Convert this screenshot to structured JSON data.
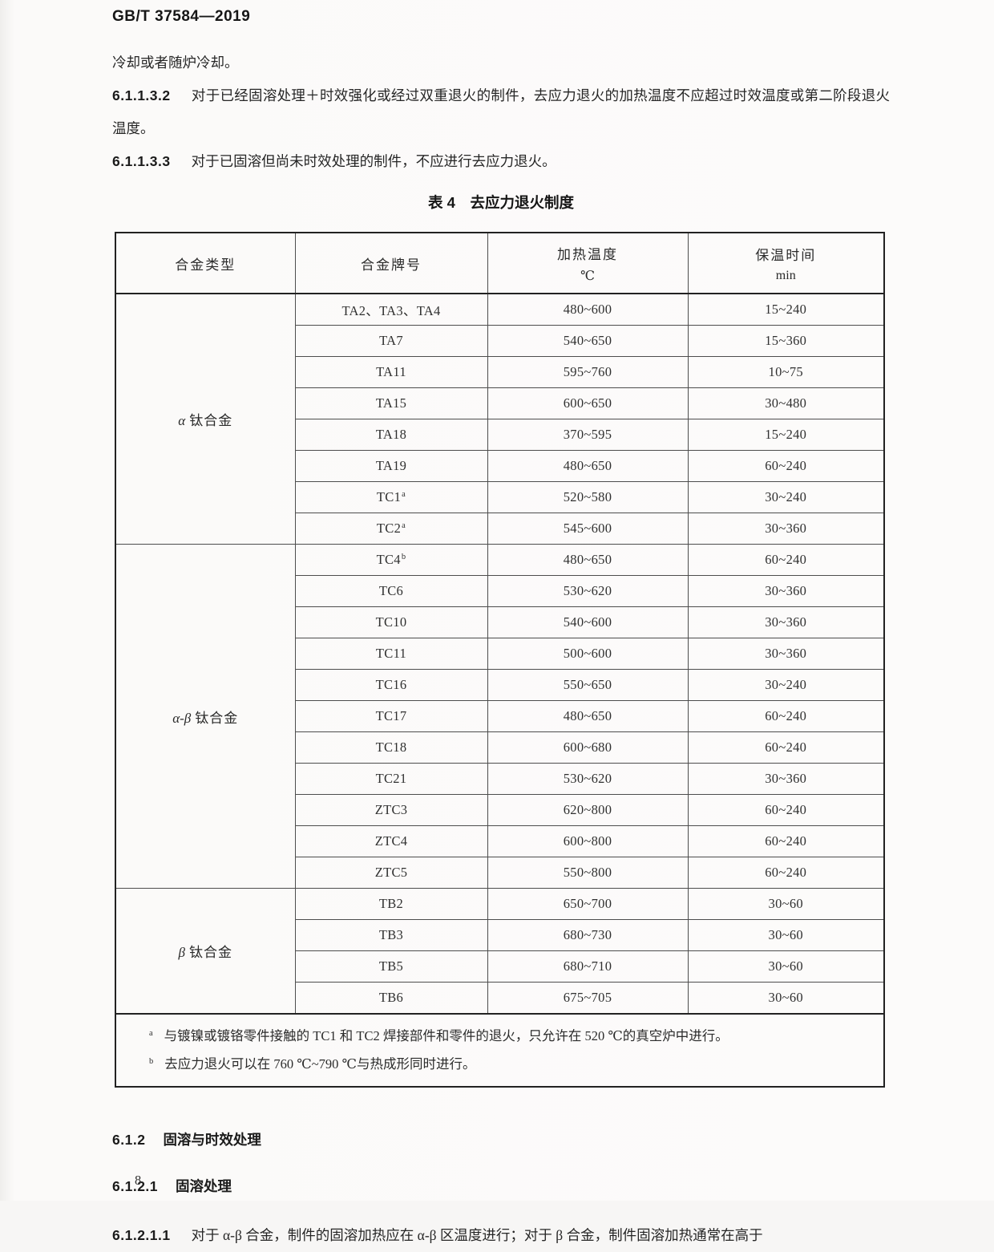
{
  "page": {
    "header": "GB/T 37584—2019",
    "page_number": "8"
  },
  "intro": {
    "line1": "冷却或者随炉冷却。",
    "clauses": [
      {
        "num": "6.1.1.3.2",
        "text": "对于已经固溶处理＋时效强化或经过双重退火的制件，去应力退火的加热温度不应超过时效温度或第二阶段退火温度。"
      },
      {
        "num": "6.1.1.3.3",
        "text": "对于已固溶但尚未时效处理的制件，不应进行去应力退火。"
      }
    ]
  },
  "table": {
    "title": "表 4　去应力退火制度",
    "headers": {
      "col1": "合金类型",
      "col2": "合金牌号",
      "col3_line1": "加热温度",
      "col3_line2": "℃",
      "col4_line1": "保温时间",
      "col4_line2": "min"
    },
    "sections": [
      {
        "type_greek": "α",
        "type_label": "钛合金",
        "rows": [
          {
            "grade": "TA2、TA3、TA4",
            "sup": "",
            "temp": "480~600",
            "time": "15~240"
          },
          {
            "grade": "TA7",
            "sup": "",
            "temp": "540~650",
            "time": "15~360"
          },
          {
            "grade": "TA11",
            "sup": "",
            "temp": "595~760",
            "time": "10~75"
          },
          {
            "grade": "TA15",
            "sup": "",
            "temp": "600~650",
            "time": "30~480"
          },
          {
            "grade": "TA18",
            "sup": "",
            "temp": "370~595",
            "time": "15~240"
          },
          {
            "grade": "TA19",
            "sup": "",
            "temp": "480~650",
            "time": "60~240"
          },
          {
            "grade": "TC1",
            "sup": "a",
            "temp": "520~580",
            "time": "30~240"
          },
          {
            "grade": "TC2",
            "sup": "a",
            "temp": "545~600",
            "time": "30~360"
          }
        ]
      },
      {
        "type_greek": "α-β",
        "type_label": "钛合金",
        "rows": [
          {
            "grade": "TC4",
            "sup": "b",
            "temp": "480~650",
            "time": "60~240"
          },
          {
            "grade": "TC6",
            "sup": "",
            "temp": "530~620",
            "time": "30~360"
          },
          {
            "grade": "TC10",
            "sup": "",
            "temp": "540~600",
            "time": "30~360"
          },
          {
            "grade": "TC11",
            "sup": "",
            "temp": "500~600",
            "time": "30~360"
          },
          {
            "grade": "TC16",
            "sup": "",
            "temp": "550~650",
            "time": "30~240"
          },
          {
            "grade": "TC17",
            "sup": "",
            "temp": "480~650",
            "time": "60~240"
          },
          {
            "grade": "TC18",
            "sup": "",
            "temp": "600~680",
            "time": "60~240"
          },
          {
            "grade": "TC21",
            "sup": "",
            "temp": "530~620",
            "time": "30~360"
          },
          {
            "grade": "ZTC3",
            "sup": "",
            "temp": "620~800",
            "time": "60~240"
          },
          {
            "grade": "ZTC4",
            "sup": "",
            "temp": "600~800",
            "time": "60~240"
          },
          {
            "grade": "ZTC5",
            "sup": "",
            "temp": "550~800",
            "time": "60~240"
          }
        ]
      },
      {
        "type_greek": "β",
        "type_label": "钛合金",
        "rows": [
          {
            "grade": "TB2",
            "sup": "",
            "temp": "650~700",
            "time": "30~60"
          },
          {
            "grade": "TB3",
            "sup": "",
            "temp": "680~730",
            "time": "30~60"
          },
          {
            "grade": "TB5",
            "sup": "",
            "temp": "680~710",
            "time": "30~60"
          },
          {
            "grade": "TB6",
            "sup": "",
            "temp": "675~705",
            "time": "30~60"
          }
        ]
      }
    ],
    "footnotes": [
      {
        "marker": "a",
        "text": "与镀镍或镀铬零件接触的 TC1 和 TC2 焊接部件和零件的退火，只允许在 520 ℃的真空炉中进行。"
      },
      {
        "marker": "b",
        "text": "去应力退火可以在 760 ℃~790 ℃与热成形同时进行。"
      }
    ]
  },
  "bottom": {
    "h612_num": "6.1.2",
    "h612_title": "固溶与时效处理",
    "h6121_num": "6.1.2.1",
    "h6121_title": "固溶处理",
    "clause_num": "6.1.2.1.1",
    "clause_text": "对于 α-β 合金，制件的固溶加热应在 α-β 区温度进行；对于 β 合金，制件固溶加热通常在高于"
  }
}
